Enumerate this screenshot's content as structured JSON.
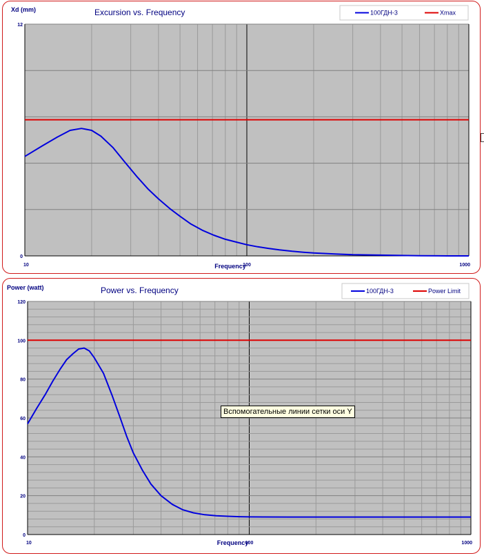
{
  "colors": {
    "plot_background": "#c0c0c0",
    "major_grid": "#808080",
    "minor_grid": "#9a9a9a",
    "highlight_grid": "#000000",
    "series": "#0000dd",
    "limit": "#dd0000",
    "frame": "#d01818"
  },
  "tooltip": {
    "text": "Вспомогательные линии сетки оси Y"
  },
  "chart_data": [
    {
      "type": "line",
      "title": "Excursion vs. Frequency",
      "xlabel": "Frequency",
      "ylabel": "Xd (mm)",
      "x_scale": "log",
      "xlim": [
        10,
        1000
      ],
      "ylim": [
        0,
        12
      ],
      "x_tick_labels": [
        "10",
        "100",
        "1000"
      ],
      "y_tick_labels": [
        "0",
        "12"
      ],
      "y_grid_step": 2.4,
      "grid": true,
      "legend_position": "top-right",
      "series": [
        {
          "name": "100ГДН-3",
          "color": "#0000dd",
          "x": [
            10,
            12,
            14,
            16,
            18,
            20,
            22,
            25,
            28,
            32,
            36,
            40,
            45,
            50,
            56,
            63,
            71,
            80,
            90,
            100,
            112,
            125,
            140,
            160,
            180,
            200,
            250,
            300,
            400,
            500,
            600,
            800,
            1000
          ],
          "y": [
            5.15,
            5.7,
            6.15,
            6.5,
            6.6,
            6.5,
            6.2,
            5.6,
            4.9,
            4.1,
            3.45,
            2.95,
            2.45,
            2.05,
            1.65,
            1.33,
            1.07,
            0.86,
            0.71,
            0.58,
            0.47,
            0.39,
            0.31,
            0.24,
            0.19,
            0.15,
            0.1,
            0.06,
            0.04,
            0.02,
            0.01,
            0.0,
            0.0
          ]
        },
        {
          "name": "Xmax",
          "color": "#dd0000",
          "x": [
            10,
            1000
          ],
          "y": [
            7.05,
            7.05
          ]
        }
      ]
    },
    {
      "type": "line",
      "title": "Power vs. Frequency",
      "xlabel": "Frequency",
      "ylabel": "Power (watt)",
      "x_scale": "log",
      "xlim": [
        10,
        1000
      ],
      "ylim": [
        0,
        120
      ],
      "x_tick_labels": [
        "10",
        "100",
        "1000"
      ],
      "y_tick_labels": [
        "0",
        "20",
        "40",
        "60",
        "80",
        "100",
        "120"
      ],
      "y_ticks": [
        0,
        20,
        40,
        60,
        80,
        100,
        120
      ],
      "y_minor_step": 4,
      "grid": true,
      "legend_position": "top-right",
      "series": [
        {
          "name": "100ГДН-3",
          "color": "#0000dd",
          "x": [
            10,
            11,
            12,
            13,
            14,
            15,
            16,
            17,
            18,
            19,
            20,
            22,
            24,
            26,
            28,
            30,
            33,
            36,
            40,
            45,
            50,
            56,
            63,
            71,
            80,
            90,
            100,
            150,
            200,
            400,
            1000
          ],
          "y": [
            57,
            65,
            72,
            79,
            85,
            90,
            93,
            95.5,
            96,
            94.5,
            91,
            83,
            72,
            61,
            50.5,
            42,
            33,
            26,
            20,
            15.5,
            12.8,
            11.2,
            10.2,
            9.7,
            9.4,
            9.2,
            9.1,
            9.0,
            9.0,
            9.0,
            9.0
          ]
        },
        {
          "name": "Power Limit",
          "color": "#dd0000",
          "x": [
            10,
            1000
          ],
          "y": [
            100,
            100
          ]
        }
      ]
    }
  ]
}
